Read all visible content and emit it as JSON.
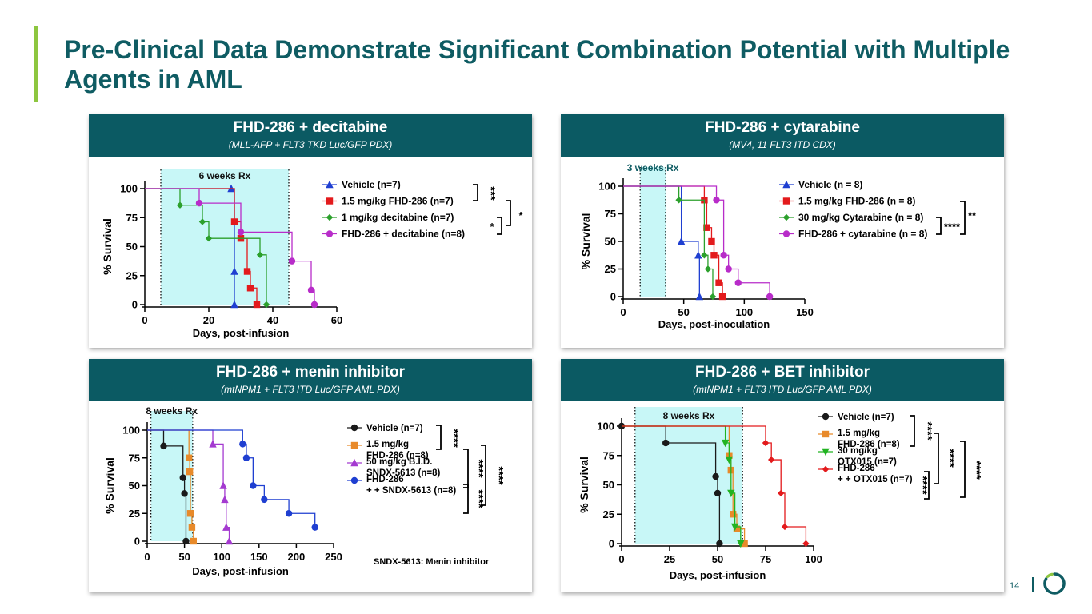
{
  "title": "Pre-Clinical Data Demonstrate Significant Combination Potential with Multiple Agents in AML",
  "page_number": "14",
  "colors": {
    "accent": "#8dc63f",
    "header": "#0b5a63",
    "title": "#0f5c63",
    "shade": "#c8f7f7"
  },
  "chart_data": [
    {
      "type": "line",
      "panel_title": "FHD-286 + decitabine",
      "panel_subtitle": "(MLL-AFP + FLT3 TKD Luc/GFP PDX)",
      "xlabel": "Days, post-infusion",
      "ylabel": "% Survival",
      "xlim": [
        0,
        60
      ],
      "ylim": [
        0,
        100
      ],
      "xticks": [
        "0",
        "20",
        "40",
        "60"
      ],
      "yticks": [
        "0",
        "25",
        "50",
        "75",
        "100"
      ],
      "treatment": {
        "label": "6 weeks Rx",
        "start": 5,
        "end": 45
      },
      "series": [
        {
          "name": "Vehicle (n=7)",
          "color": "#1f3fd1",
          "marker": "triangle",
          "x": [
            27,
            28,
            28
          ],
          "y": [
            100,
            28.6,
            0
          ]
        },
        {
          "name": "1.5 mg/kg FHD-286 (n=7)",
          "color": "#e31a1c",
          "marker": "square",
          "x": [
            28,
            30,
            32,
            33,
            35
          ],
          "y": [
            71.4,
            57.1,
            28.6,
            14.3,
            0
          ]
        },
        {
          "name": "1 mg/kg decitabine (n=7)",
          "color": "#2ca02c",
          "marker": "diamond",
          "x": [
            11,
            18,
            20,
            36,
            38
          ],
          "y": [
            85.7,
            71.4,
            57.1,
            42.9,
            0
          ]
        },
        {
          "name": "FHD-286 + decitabine (n=8)",
          "color": "#b82cc9",
          "marker": "circle",
          "x": [
            17,
            30,
            46,
            52,
            53
          ],
          "y": [
            87.5,
            62.5,
            37.5,
            12.5,
            0
          ]
        }
      ],
      "significance": [
        {
          "label": "***",
          "pair": "Vehicle vs 1.5 mg/kg FHD-286"
        },
        {
          "label": "*",
          "pair": "1 mg/kg decitabine vs FHD-286 + decitabine"
        },
        {
          "label": "*",
          "pair": "outer"
        }
      ]
    },
    {
      "type": "line",
      "panel_title": "FHD-286 + cytarabine",
      "panel_subtitle": "(MV4, 11 FLT3 ITD CDX)",
      "xlabel": "Days, post-inoculation",
      "ylabel": "% Survival",
      "xlim": [
        0,
        150
      ],
      "ylim": [
        0,
        100
      ],
      "xticks": [
        "0",
        "50",
        "100",
        "150"
      ],
      "yticks": [
        "0",
        "25",
        "50",
        "75",
        "100"
      ],
      "treatment": {
        "label": "3 weeks Rx",
        "start": 14,
        "end": 35
      },
      "series": [
        {
          "name": "Vehicle (n = 8)",
          "color": "#1f3fd1",
          "marker": "triangle",
          "x": [
            48,
            62,
            63
          ],
          "y": [
            50,
            37.5,
            0
          ]
        },
        {
          "name": "1.5 mg/kg FHD-286 (n = 8)",
          "color": "#e31a1c",
          "marker": "square",
          "x": [
            67,
            69,
            73,
            75,
            79,
            82
          ],
          "y": [
            87.5,
            62.5,
            50,
            37.5,
            12.5,
            0
          ]
        },
        {
          "name": "30 mg/kg Cytarabine (n = 8)",
          "color": "#2ca02c",
          "marker": "diamond",
          "x": [
            46,
            67,
            70,
            74
          ],
          "y": [
            87.5,
            37.5,
            25,
            0
          ]
        },
        {
          "name": "FHD-286 + cytarabine (n = 8)",
          "color": "#b82cc9",
          "marker": "circle",
          "x": [
            77,
            83,
            87,
            95,
            121
          ],
          "y": [
            87.5,
            37.5,
            25,
            12.5,
            0
          ]
        }
      ],
      "significance": [
        {
          "label": "**",
          "pair": "1.5 mg/kg FHD-286 vs FHD-286 + cytarabine"
        },
        {
          "label": "****",
          "pair": "30 mg/kg Cytarabine vs FHD-286 + cytarabine"
        }
      ]
    },
    {
      "type": "line",
      "panel_title": "FHD-286 + menin inhibitor",
      "panel_subtitle": "(mtNPM1 + FLT3 ITD Luc/GFP AML PDX)",
      "xlabel": "Days, post-infusion",
      "ylabel": "% Survival",
      "xlim": [
        0,
        250
      ],
      "ylim": [
        0,
        100
      ],
      "xticks": [
        "0",
        "50",
        "100",
        "150",
        "200",
        "250"
      ],
      "yticks": [
        "0",
        "25",
        "50",
        "75",
        "100"
      ],
      "treatment": {
        "label": "8 weeks  Rx",
        "start": 5,
        "end": 61
      },
      "note": "SNDX-5613: Menin inhibitor",
      "series": [
        {
          "name": "Vehicle (n=7)",
          "color": "#1a1a1a",
          "marker": "circle",
          "x": [
            22,
            48,
            50,
            52
          ],
          "y": [
            85.7,
            57.1,
            42.9,
            0
          ]
        },
        {
          "name": "1.5 mg/kg FHD-286 (n=8)",
          "color": "#e88a2a",
          "marker": "square",
          "x": [
            56,
            57,
            58,
            60,
            62
          ],
          "y": [
            75,
            62.5,
            25,
            12.5,
            0
          ]
        },
        {
          "name": "50 mg/kg B.I.D. SNDX-5613 (n=8)",
          "color": "#a43ad0",
          "marker": "triangle",
          "x": [
            88,
            102,
            104,
            106,
            110
          ],
          "y": [
            87.5,
            50,
            37.5,
            12.5,
            0
          ]
        },
        {
          "name": "FHD-286 + SNDX-5613 (n=8)",
          "color": "#1f3fd1",
          "marker": "circle",
          "x": [
            128,
            133,
            142,
            157,
            190,
            225
          ],
          "y": [
            87.5,
            75,
            50,
            37.5,
            25,
            12.5
          ]
        }
      ],
      "significance": [
        {
          "label": "****",
          "pair": "Vehicle vs 1.5 mg/kg FHD-286"
        },
        {
          "label": "****",
          "pair": "1.5 mg/kg FHD-286 vs 50 mg/kg SNDX-5613"
        },
        {
          "label": "****",
          "pair": "50 mg/kg SNDX-5613 vs FHD-286 + SNDX-5613"
        },
        {
          "label": "****",
          "pair": "outer"
        }
      ]
    },
    {
      "type": "line",
      "panel_title": "FHD-286 + BET inhibitor",
      "panel_subtitle": "(mtNPM1 + FLT3 ITD Luc/GFP AML PDX)",
      "xlabel": "Days, post-infusion",
      "ylabel": "% Survival",
      "xlim": [
        0,
        100
      ],
      "ylim": [
        0,
        100
      ],
      "xticks": [
        "0",
        "25",
        "50",
        "75",
        "100"
      ],
      "yticks": [
        "0",
        "25",
        "50",
        "75",
        "100"
      ],
      "treatment": {
        "label": "8 weeks  Rx",
        "start": 7,
        "end": 63
      },
      "series": [
        {
          "name": "Vehicle (n=7)",
          "color": "#1a1a1a",
          "marker": "circle",
          "x": [
            0,
            23,
            49,
            50,
            51
          ],
          "y": [
            100,
            85.7,
            57.1,
            42.9,
            0
          ]
        },
        {
          "name": "1.5 mg/kg FHD-286 (n=8)",
          "color": "#e88a2a",
          "marker": "square",
          "x": [
            56,
            57,
            58,
            60,
            64
          ],
          "y": [
            75,
            62.5,
            25,
            12.5,
            0
          ]
        },
        {
          "name": "30 mg/kg OTX015 (n=7)",
          "color": "#22b322",
          "marker": "triangle-down",
          "x": [
            54,
            56,
            57,
            59,
            62
          ],
          "y": [
            85.7,
            71.4,
            42.9,
            14.3,
            0
          ]
        },
        {
          "name": "FHD-286 + OTX015 (n=7)",
          "color": "#e31a1c",
          "marker": "diamond",
          "x": [
            75,
            78,
            83,
            85,
            96
          ],
          "y": [
            85.7,
            71.4,
            42.9,
            14.3,
            0
          ]
        }
      ],
      "significance": [
        {
          "label": "****",
          "pair": "Vehicle vs 1.5 mg/kg FHD-286"
        },
        {
          "label": "****",
          "pair": "1.5 mg/kg FHD-286 vs FHD-286 + OTX015"
        },
        {
          "label": "****",
          "pair": "30 mg/kg OTX015 vs FHD-286 + OTX015"
        },
        {
          "label": "****",
          "pair": "outer"
        }
      ]
    }
  ]
}
